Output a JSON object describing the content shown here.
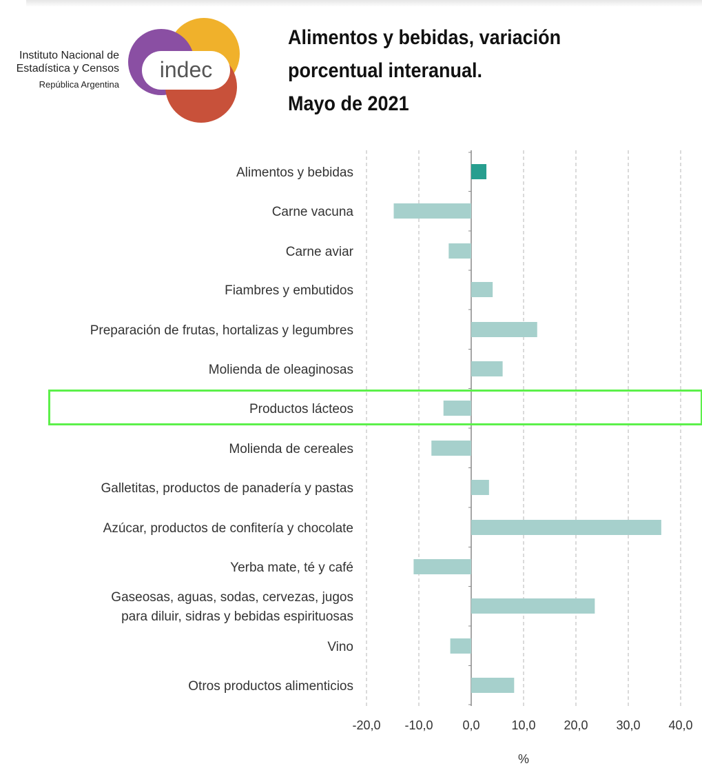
{
  "header": {
    "org_line1": "Instituto Nacional de",
    "org_line2": "Estadística y Censos",
    "org_line3": "República Argentina",
    "logo_text": "indec",
    "logo_colors": [
      "#8a4fa3",
      "#f0b12b",
      "#c8513a"
    ]
  },
  "title_lines": [
    "Alimentos y bebidas, variación",
    "porcentual interanual.",
    "Mayo de 2021"
  ],
  "colors": {
    "bar": "#a6d0cc",
    "bar_highlight": "#279e8f",
    "grid": "#b5b5b5",
    "axis": "#888888",
    "highlight_box": "#5cf04a"
  },
  "chart_data": {
    "type": "bar",
    "orientation": "horizontal",
    "title": "Alimentos y bebidas, variación porcentual interanual. Mayo de 2021",
    "categories": [
      [
        "Alimentos y bebidas"
      ],
      [
        "Carne vacuna"
      ],
      [
        "Carne aviar"
      ],
      [
        "Fiambres y embutidos"
      ],
      [
        "Preparación de frutas, hortalizas y legumbres"
      ],
      [
        "Molienda de oleaginosas"
      ],
      [
        "Productos lácteos"
      ],
      [
        "Molienda de cereales"
      ],
      [
        "Galletitas, productos de panadería y pastas"
      ],
      [
        "Azúcar, productos de confitería y chocolate"
      ],
      [
        "Yerba mate, té y café"
      ],
      [
        "Gaseosas, aguas, sodas, cervezas, jugos",
        "para diluir, sidras y bebidas espirituosas"
      ],
      [
        "Vino"
      ],
      [
        "Otros productos alimenticios"
      ]
    ],
    "values": [
      2.9,
      -14.8,
      -4.3,
      4.1,
      12.6,
      6.0,
      -5.3,
      -7.6,
      3.4,
      36.3,
      -11.0,
      23.6,
      -4.0,
      8.2
    ],
    "highlighted_category": "Productos lácteos",
    "xlabel": "%",
    "xlim": [
      -20,
      40
    ],
    "xticks": [
      "-20,0",
      "-10,0",
      "0,0",
      "10,0",
      "20,0",
      "30,0",
      "40,0"
    ],
    "xtick_values": [
      -20,
      -10,
      0,
      10,
      20,
      30,
      40
    ],
    "grid": "vertical dashed"
  }
}
